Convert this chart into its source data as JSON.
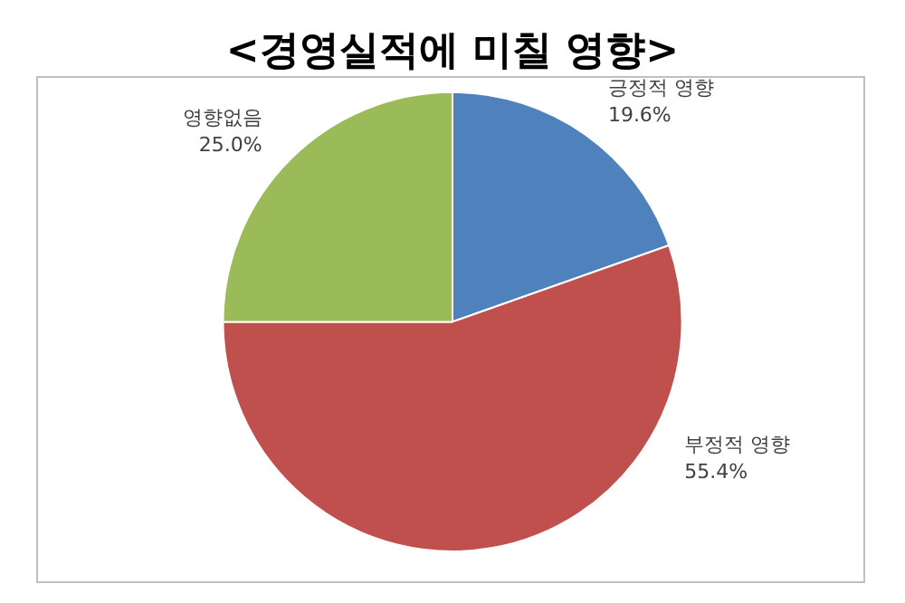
{
  "chart_data": {
    "type": "pie",
    "title": "<경영실적에 미칠 영향>",
    "categories": [
      "긍정적 영향",
      "부정적 영향",
      "영향없음"
    ],
    "values": [
      19.6,
      55.4,
      25.0
    ],
    "value_labels": [
      "19.6%",
      "55.4%",
      "25.0%"
    ],
    "colors": [
      "#4f81bd",
      "#c0504d",
      "#9bbb59"
    ],
    "legend": false
  }
}
